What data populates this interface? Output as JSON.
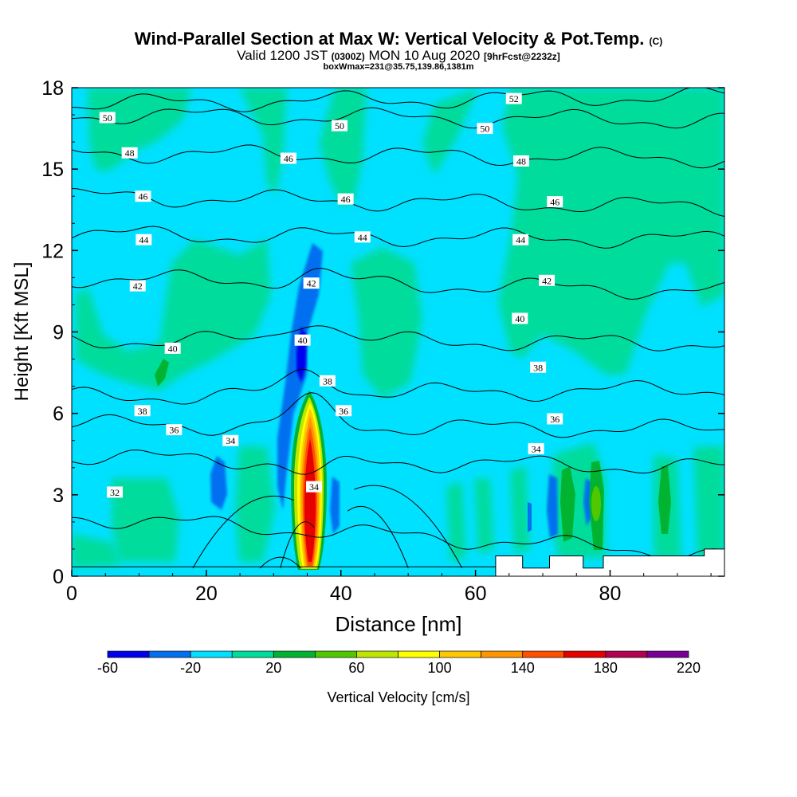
{
  "header": {
    "title": "Wind-Parallel Section at Max W: Vertical Velocity & Pot.Temp.",
    "title_mark": "(C)",
    "valid_prefix": "Valid 1200 JST",
    "valid_zulu": "(0300Z)",
    "valid_date": "MON 10 Aug 2020",
    "forecast_tag": "[9hrFcst@2232z]",
    "box_info": "boxWmax=231@35.75,139.86,1381m"
  },
  "chart_data": {
    "type": "heatmap",
    "xlabel": "Distance [nm]",
    "ylabel": "Height [Kft MSL]",
    "xlim": [
      0,
      97
    ],
    "ylim": [
      0,
      18
    ],
    "x_ticks": [
      0,
      20,
      40,
      60,
      80
    ],
    "y_ticks": [
      0,
      3,
      6,
      9,
      12,
      15,
      18
    ],
    "colorbar": {
      "label": "Vertical Velocity [cm/s]",
      "levels": [
        -60,
        -40,
        -20,
        0,
        20,
        40,
        60,
        80,
        100,
        120,
        140,
        160,
        180,
        200,
        220
      ],
      "colors": [
        "#0000ee",
        "#0070f0",
        "#00e0ff",
        "#00dc9c",
        "#00b432",
        "#50c800",
        "#bee600",
        "#ffff00",
        "#ffc800",
        "#ff9600",
        "#ff5000",
        "#e60000",
        "#b40050",
        "#780096"
      ],
      "tick_labels": [
        "-60",
        "-20",
        "20",
        "60",
        "100",
        "140",
        "180",
        "220"
      ]
    },
    "w_features": [
      {
        "kind": "updraft",
        "x": 35.7,
        "y_bottom": 0.2,
        "y_top": 6.7,
        "w_max": 231
      },
      {
        "kind": "downdraft",
        "x": 35.3,
        "y_bottom": 7.2,
        "y_top": 12.3,
        "w_min": -60
      },
      {
        "kind": "downdraft",
        "x": 22.5,
        "y_bottom": 2.4,
        "y_top": 4.4,
        "w_min": -30
      },
      {
        "kind": "weak-updraft",
        "x": 13.5,
        "y_bottom": 7.3,
        "y_top": 8.7,
        "w_max": 30
      },
      {
        "kind": "weak-updraft",
        "x": 73.5,
        "y_bottom": 1.5,
        "y_top": 3.9,
        "w_max": 30
      },
      {
        "kind": "weak-updraft",
        "x": 77.5,
        "y_bottom": 1.0,
        "y_top": 4.2,
        "w_max": 50
      },
      {
        "kind": "weak-updraft",
        "x": 88.5,
        "y_bottom": 1.6,
        "y_top": 4.1,
        "w_max": 30
      }
    ],
    "theta_contours": [
      {
        "value": 52,
        "y_left": 17.4,
        "y_right": 17.7
      },
      {
        "value": 50,
        "y_left": 17.0,
        "y_right": 16.8
      },
      {
        "value": 48,
        "y_left": 15.6,
        "y_right": 15.4
      },
      {
        "value": 46,
        "y_left": 14.0,
        "y_right": 13.6
      },
      {
        "value": 44,
        "y_left": 12.6,
        "y_right": 12.4
      },
      {
        "value": 42,
        "y_left": 11.0,
        "y_right": 10.5
      },
      {
        "value": 40,
        "y_left": 8.7,
        "y_right": 8.6
      },
      {
        "value": 38,
        "y_left": 6.6,
        "y_right": 6.9
      },
      {
        "value": 36,
        "y_left": 5.6,
        "y_right": 5.4
      },
      {
        "value": 34,
        "y_left": 4.4,
        "y_right": 4.0
      },
      {
        "value": 32,
        "y_left": 2.2,
        "y_right": 0.8
      }
    ],
    "contour_labels": [
      {
        "text": "50",
        "x": 5.3,
        "y": 16.9
      },
      {
        "text": "50",
        "x": 39.8,
        "y": 16.6
      },
      {
        "text": "50",
        "x": 61.4,
        "y": 16.5
      },
      {
        "text": "52",
        "x": 65.7,
        "y": 17.6
      },
      {
        "text": "48",
        "x": 8.6,
        "y": 15.6
      },
      {
        "text": "48",
        "x": 66.8,
        "y": 15.3
      },
      {
        "text": "46",
        "x": 32.2,
        "y": 15.4
      },
      {
        "text": "46",
        "x": 10.6,
        "y": 14.0
      },
      {
        "text": "46",
        "x": 40.7,
        "y": 13.9
      },
      {
        "text": "46",
        "x": 71.8,
        "y": 13.8
      },
      {
        "text": "44",
        "x": 10.7,
        "y": 12.4
      },
      {
        "text": "44",
        "x": 43.2,
        "y": 12.5
      },
      {
        "text": "44",
        "x": 66.7,
        "y": 12.4
      },
      {
        "text": "42",
        "x": 9.8,
        "y": 10.7
      },
      {
        "text": "42",
        "x": 35.6,
        "y": 10.8
      },
      {
        "text": "42",
        "x": 70.6,
        "y": 10.9
      },
      {
        "text": "40",
        "x": 15.0,
        "y": 8.4
      },
      {
        "text": "40",
        "x": 34.3,
        "y": 8.7
      },
      {
        "text": "40",
        "x": 66.6,
        "y": 9.5
      },
      {
        "text": "38",
        "x": 38.0,
        "y": 7.2
      },
      {
        "text": "38",
        "x": 10.5,
        "y": 6.1
      },
      {
        "text": "38",
        "x": 69.3,
        "y": 7.7
      },
      {
        "text": "36",
        "x": 40.4,
        "y": 6.1
      },
      {
        "text": "36",
        "x": 15.2,
        "y": 5.4
      },
      {
        "text": "36",
        "x": 71.8,
        "y": 5.8
      },
      {
        "text": "34",
        "x": 23.6,
        "y": 5.0
      },
      {
        "text": "34",
        "x": 69.0,
        "y": 4.7
      },
      {
        "text": "34",
        "x": 36.0,
        "y": 3.3
      },
      {
        "text": "32",
        "x": 6.4,
        "y": 3.1
      }
    ],
    "terrain": [
      [
        0,
        0
      ],
      [
        63,
        0
      ],
      [
        63,
        0.75
      ],
      [
        67,
        0.75
      ],
      [
        67,
        0.3
      ],
      [
        71,
        0.3
      ],
      [
        71,
        0.75
      ],
      [
        76,
        0.75
      ],
      [
        76,
        0.3
      ],
      [
        79,
        0.3
      ],
      [
        79,
        0.75
      ],
      [
        94,
        0.75
      ],
      [
        94,
        1.0
      ],
      [
        97,
        1.0
      ],
      [
        97,
        0
      ]
    ]
  }
}
